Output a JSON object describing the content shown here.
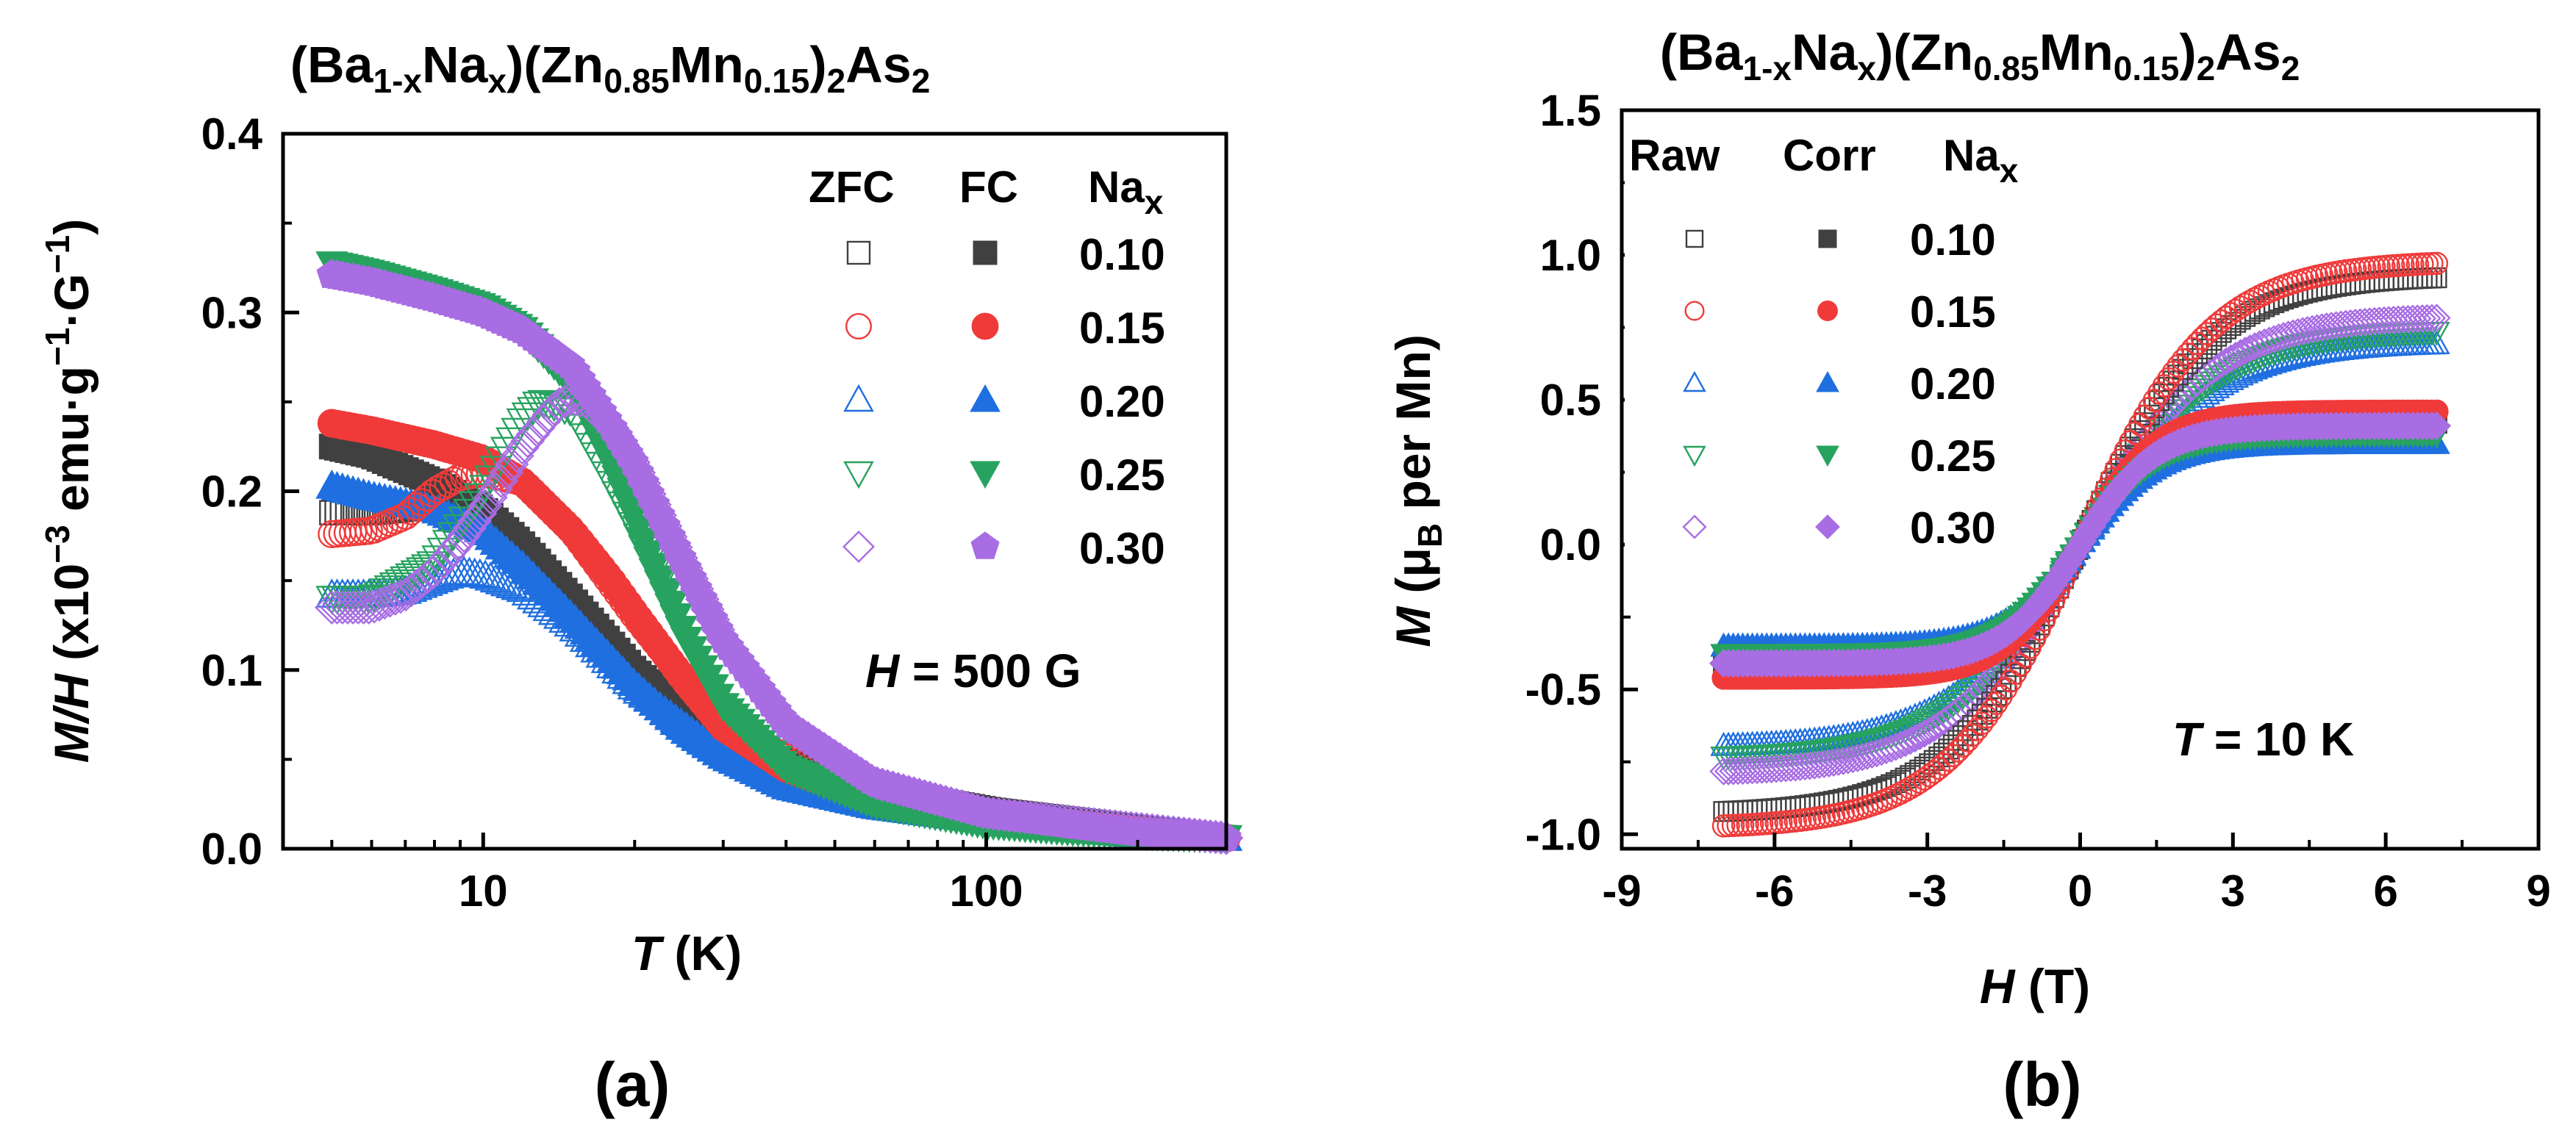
{
  "colors": {
    "x010": "#404040",
    "x015": "#f03a3a",
    "x020": "#1f6fe0",
    "x025": "#27a35f",
    "x030": "#a86de3"
  },
  "chart_data": [
    {
      "panel": "(a)",
      "type": "scatter",
      "title": "(Ba1-xNax)(Zn0.85Mn0.15)2As2",
      "xlabel": "T (K)",
      "ylabel": "M/H (x10^-3 emu·g^-1·G^-1)",
      "xscale": "log",
      "xlim": [
        4,
        300
      ],
      "ylim": [
        0,
        0.4
      ],
      "yticks": [
        "0.0",
        "0.1",
        "0.2",
        "0.3",
        "0.4"
      ],
      "xticks": [
        "10",
        "100"
      ],
      "annotation": "H = 500 G",
      "legend": {
        "headers": [
          "ZFC",
          "FC",
          "Na_x"
        ],
        "entries": [
          "0.10",
          "0.15",
          "0.20",
          "0.25",
          "0.30"
        ]
      },
      "series": [
        {
          "name": "FC 0.10",
          "x": [
            5,
            6,
            8,
            10,
            12,
            15,
            20,
            25,
            30,
            40,
            60,
            100,
            150,
            200,
            300
          ],
          "y": [
            0.225,
            0.22,
            0.205,
            0.19,
            0.17,
            0.14,
            0.1,
            0.075,
            0.06,
            0.045,
            0.033,
            0.022,
            0.013,
            0.009,
            0.006
          ]
        },
        {
          "name": "ZFC 0.10",
          "x": [
            5,
            6,
            7,
            8,
            10,
            12,
            15,
            20,
            30,
            60,
            100,
            300
          ],
          "y": [
            0.188,
            0.188,
            0.19,
            0.195,
            0.18,
            0.16,
            0.135,
            0.1,
            0.06,
            0.033,
            0.022,
            0.006
          ]
        },
        {
          "name": "FC 0.15",
          "x": [
            5,
            6,
            8,
            10,
            12,
            15,
            18,
            20,
            25,
            30,
            40,
            60,
            100,
            150,
            200,
            300
          ],
          "y": [
            0.238,
            0.234,
            0.226,
            0.218,
            0.205,
            0.178,
            0.15,
            0.132,
            0.095,
            0.068,
            0.045,
            0.028,
            0.018,
            0.012,
            0.009,
            0.006
          ]
        },
        {
          "name": "ZFC 0.15",
          "x": [
            5,
            6,
            7,
            8,
            9,
            10,
            12,
            15,
            20,
            30,
            60,
            100,
            300
          ],
          "y": [
            0.176,
            0.178,
            0.186,
            0.2,
            0.208,
            0.21,
            0.205,
            0.178,
            0.13,
            0.068,
            0.028,
            0.018,
            0.006
          ]
        },
        {
          "name": "FC 0.20",
          "x": [
            5,
            6,
            8,
            10,
            12,
            15,
            20,
            25,
            30,
            40,
            60,
            100,
            150,
            200,
            300
          ],
          "y": [
            0.203,
            0.197,
            0.19,
            0.178,
            0.158,
            0.13,
            0.092,
            0.067,
            0.052,
            0.035,
            0.024,
            0.016,
            0.011,
            0.008,
            0.006
          ]
        },
        {
          "name": "ZFC 0.20",
          "x": [
            5,
            6,
            7,
            8,
            9,
            10,
            12,
            15,
            20,
            30,
            60,
            100,
            300
          ],
          "y": [
            0.142,
            0.142,
            0.144,
            0.15,
            0.155,
            0.153,
            0.145,
            0.125,
            0.09,
            0.052,
            0.024,
            0.016,
            0.006
          ]
        },
        {
          "name": "FC 0.25",
          "x": [
            5,
            6,
            8,
            10,
            12,
            15,
            18,
            20,
            25,
            30,
            40,
            60,
            100,
            150,
            200,
            300
          ],
          "y": [
            0.327,
            0.322,
            0.312,
            0.303,
            0.29,
            0.26,
            0.215,
            0.185,
            0.12,
            0.08,
            0.045,
            0.025,
            0.014,
            0.01,
            0.008,
            0.006
          ]
        },
        {
          "name": "ZFC 0.25",
          "x": [
            5,
            6,
            8,
            10,
            12,
            13,
            15,
            18,
            20,
            25,
            30,
            40,
            60,
            100,
            300
          ],
          "y": [
            0.14,
            0.14,
            0.16,
            0.2,
            0.24,
            0.25,
            0.245,
            0.205,
            0.18,
            0.12,
            0.08,
            0.045,
            0.025,
            0.014,
            0.006
          ]
        },
        {
          "name": "FC 0.30",
          "x": [
            5,
            6,
            8,
            10,
            12,
            15,
            18,
            20,
            25,
            30,
            40,
            60,
            100,
            150,
            200,
            300
          ],
          "y": [
            0.321,
            0.317,
            0.308,
            0.3,
            0.29,
            0.27,
            0.236,
            0.215,
            0.16,
            0.117,
            0.07,
            0.037,
            0.02,
            0.013,
            0.009,
            0.006
          ]
        },
        {
          "name": "ZFC 0.30",
          "x": [
            5,
            6,
            7,
            8,
            9,
            10,
            12,
            14,
            15,
            16,
            18,
            20,
            25,
            30,
            40,
            60,
            100,
            300
          ],
          "y": [
            0.135,
            0.135,
            0.142,
            0.155,
            0.172,
            0.19,
            0.225,
            0.248,
            0.252,
            0.25,
            0.236,
            0.215,
            0.16,
            0.117,
            0.07,
            0.037,
            0.02,
            0.006
          ]
        }
      ]
    },
    {
      "panel": "(b)",
      "type": "scatter",
      "title": "(Ba1-xNax)(Zn0.85Mn0.15)2As2",
      "xlabel": "H (T)",
      "ylabel": "M (μB per Mn)",
      "xlim": [
        -9,
        9
      ],
      "ylim": [
        -1.05,
        1.5
      ],
      "xticks": [
        "-9",
        "-6",
        "-3",
        "0",
        "3",
        "6",
        "9"
      ],
      "yticks": [
        "-1.0",
        "-0.5",
        "0.0",
        "0.5",
        "1.0",
        "1.5"
      ],
      "annotation": "T = 10 K",
      "legend": {
        "headers": [
          "Raw",
          "Corr",
          "Na_x"
        ],
        "entries": [
          "0.10",
          "0.15",
          "0.20",
          "0.25",
          "0.30"
        ]
      },
      "series": [
        {
          "name": "Raw 0.10",
          "saturation": 0.93,
          "width": 2.6
        },
        {
          "name": "Corr 0.10",
          "saturation": 0.42,
          "width": 1.5
        },
        {
          "name": "Raw 0.15",
          "saturation": 0.98,
          "width": 2.6
        },
        {
          "name": "Corr 0.15",
          "saturation": 0.46,
          "width": 1.5
        },
        {
          "name": "Raw 0.20",
          "saturation": 0.7,
          "width": 2.6
        },
        {
          "name": "Corr 0.20",
          "saturation": 0.35,
          "width": 1.5
        },
        {
          "name": "Raw 0.25",
          "saturation": 0.74,
          "width": 2.6
        },
        {
          "name": "Corr 0.25",
          "saturation": 0.38,
          "width": 1.5
        },
        {
          "name": "Raw 0.30",
          "saturation": 0.79,
          "width": 2.6
        },
        {
          "name": "Corr 0.30",
          "saturation": 0.41,
          "width": 1.5
        }
      ]
    }
  ],
  "panel_a_title": {
    "pre": "(Ba",
    "s1": "1-x",
    "mid1": "Na",
    "s2": "x",
    "mid2": ")(Zn",
    "s3": "0.85",
    "mid3": "Mn",
    "s4": "0.15",
    "mid4": ")",
    "s5": "2",
    "mid5": "As",
    "s6": "2"
  },
  "panel_b_title": {
    "pre": "(Ba",
    "s1": "1-x",
    "mid1": "Na",
    "s2": "x",
    "mid2": ")(Zn",
    "s3": "0.85",
    "mid3": "Mn",
    "s4": "0.15",
    "mid4": ")",
    "s5": "2",
    "mid5": "As",
    "s6": "2"
  },
  "labels": {
    "a_ylabel": {
      "p1": "M/H",
      "p2": " (x10",
      "sup1": "−3",
      "p3": " emu·g",
      "sup2": "−1",
      "p4": "·G",
      "sup3": "−1",
      "p5": ")"
    },
    "a_xlabel": {
      "var": "T",
      "unit": " (K)"
    },
    "b_ylabel": {
      "var": "M",
      "p1": " (μ",
      "sub": "B",
      "p2": " per Mn)"
    },
    "b_xlabel": {
      "var": "H",
      "unit": " (T)"
    },
    "a_ann": {
      "var": "H",
      "rest": " = 500 G"
    },
    "b_ann": {
      "var": "T",
      "rest": " = 10 K"
    },
    "a_legend": {
      "h1": "ZFC",
      "h2": "FC",
      "h3": "Na",
      "h3sub": "x"
    },
    "b_legend": {
      "h1": "Raw",
      "h2": "Corr",
      "h3": "Na",
      "h3sub": "x"
    },
    "panel_a": "(a)",
    "panel_b": "(b)"
  }
}
